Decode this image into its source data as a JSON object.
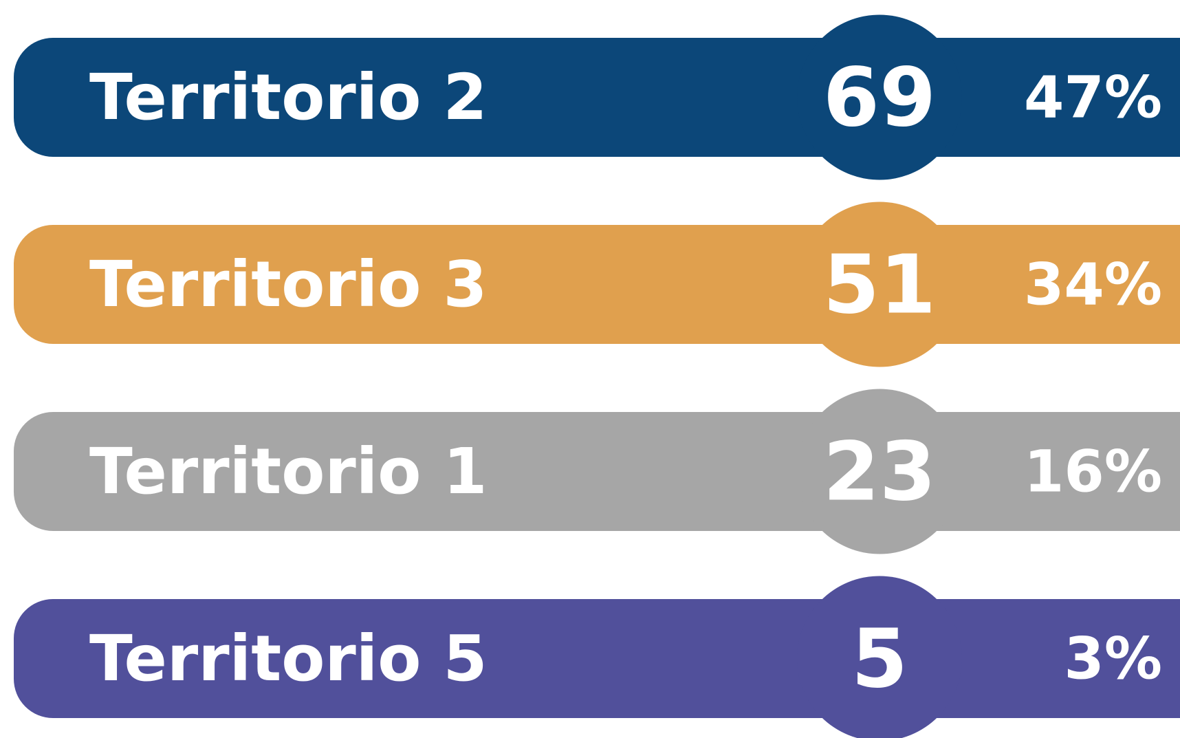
{
  "rows": [
    {
      "label": "Territorio 2",
      "count": 69,
      "percent": "47%",
      "color": "#0c4779"
    },
    {
      "label": "Territorio 3",
      "count": 51,
      "percent": "34%",
      "color": "#e0a04e"
    },
    {
      "label": "Territorio 1",
      "count": 23,
      "percent": "16%",
      "color": "#a6a6a6"
    },
    {
      "label": "Territorio 5",
      "count": 5,
      "percent": "3%",
      "color": "#51509b"
    }
  ]
}
